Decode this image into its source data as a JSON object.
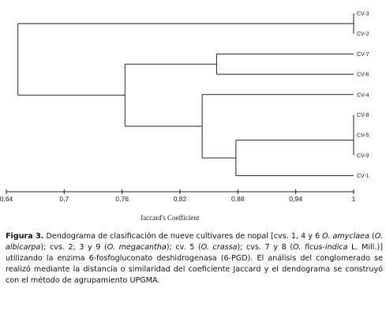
{
  "chart_data": {
    "type": "dendrogram",
    "xlabel": "Jaccard's Coefficient",
    "xlim": [
      0.64,
      1
    ],
    "ticks": [
      0.64,
      0.7,
      0.76,
      0.82,
      0.88,
      0.94,
      1
    ],
    "tick_labels": [
      "0,64",
      "0,7",
      "0,76",
      "0,82",
      "0,88",
      "0,94",
      "1"
    ],
    "leaves": [
      "CV-3",
      "CV-2",
      "CV-7",
      "CV-6",
      "CV-4",
      "CV-8",
      "CV-5",
      "CV-9",
      "CV-1"
    ],
    "merges": [
      {
        "members": [
          "CV-3",
          "CV-2"
        ],
        "height": 1.0
      },
      {
        "members": [
          "CV-8",
          "CV-5"
        ],
        "height": 1.0
      },
      {
        "members": [
          "CV-8",
          "CV-5",
          "CV-9"
        ],
        "height": 1.0
      },
      {
        "members": [
          "CV-7",
          "CV-6"
        ],
        "height": 0.858
      },
      {
        "members": [
          "CV-8",
          "CV-5",
          "CV-9",
          "CV-1"
        ],
        "height": 0.878
      },
      {
        "members": [
          "CV-4",
          "CV-8",
          "CV-5",
          "CV-9",
          "CV-1"
        ],
        "height": 0.843
      },
      {
        "members": [
          "CV-7",
          "CV-6",
          "CV-4",
          "CV-8",
          "CV-5",
          "CV-9",
          "CV-1"
        ],
        "height": 0.763
      },
      {
        "members": [
          "CV-3",
          "CV-2",
          "CV-7",
          "CV-6",
          "CV-4",
          "CV-8",
          "CV-5",
          "CV-9",
          "CV-1"
        ],
        "height": 0.652
      }
    ]
  },
  "caption": {
    "label": "Figura 3.",
    "t1": " Dendograma de clasificación de nueve cultivares de nopal [cvs. 1, 4 y 6 ",
    "s1": "O. amyclaea",
    "t2": " (",
    "s2": "O. albicarpa",
    "t3": "); cvs. 2, 3 y 9 (",
    "s3": "O. megacantha",
    "t4": "); cv. 5 (",
    "s4": "O. crassa",
    "t5": "); cvs. 7 y 8 (",
    "s5": "O. ficus-indica",
    "t6": " L. Mill.)] utilizando la enzima 6-fosfogluconato deshidrogenasa (6-PGD). El análisis del conglomerado se realizó mediante la distancia o similaridad del coeficiente Jaccard y el dendograma se construyó con el método de agrupamiento UPGMA."
  }
}
